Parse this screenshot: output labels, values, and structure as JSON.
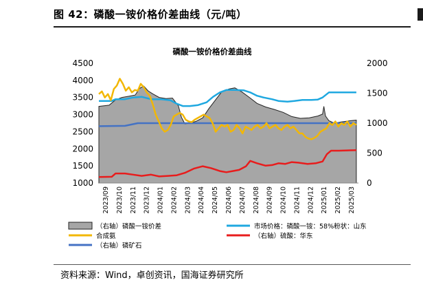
{
  "figure": {
    "title": "图 42：磷酸一铵价格价差曲线（元/吨）",
    "source": "资料来源：Wind，卓创资讯，国海证券研究所"
  },
  "chart_data": {
    "type": "line",
    "title": "磷酸一铵价格价差曲线",
    "xlabel": "",
    "ylabel": "",
    "ylim": [
      1000,
      4500
    ],
    "y2lim": [
      0,
      2000
    ],
    "yticks": [
      1000,
      1500,
      2000,
      2500,
      3000,
      3500,
      4000,
      4500
    ],
    "y2ticks": [
      0,
      500,
      1000,
      1500,
      2000
    ],
    "x_range": [
      "2023-09-01",
      "2025-04-30"
    ],
    "x_tick_labels": [
      "2023/09",
      "2023/10",
      "2023/11",
      "2023/12",
      "2024/01",
      "2024/02",
      "2024/03",
      "2024/04",
      "2024/05",
      "2024/06",
      "2024/07",
      "2024/08",
      "2024/09",
      "2024/10",
      "2024/11",
      "2024/12",
      "2025/01",
      "2025/02",
      "2025/03"
    ],
    "grid": false,
    "legend_position": "bottom",
    "colors": {
      "spread": "#a6a6a6",
      "market_price": "#1fa8e0",
      "ammonia": "#f2b705",
      "sulfuric_acid": "#e81c1c",
      "phosphate_rock": "#4472c4"
    },
    "series": [
      {
        "key": "spread",
        "name": "（右轴）磷酸一铵价差",
        "axis": "right",
        "kind": "area",
        "points": [
          [
            "2023-09-01",
            1280
          ],
          [
            "2023-09-25",
            1300
          ],
          [
            "2023-10-10",
            1390
          ],
          [
            "2023-10-25",
            1430
          ],
          [
            "2023-11-10",
            1450
          ],
          [
            "2023-11-25",
            1470
          ],
          [
            "2023-12-05",
            1580
          ],
          [
            "2023-12-15",
            1620
          ],
          [
            "2023-12-25",
            1540
          ],
          [
            "2024-01-05",
            1490
          ],
          [
            "2024-01-20",
            1430
          ],
          [
            "2024-02-05",
            1410
          ],
          [
            "2024-02-20",
            1420
          ],
          [
            "2024-03-05",
            1290
          ],
          [
            "2024-03-12",
            1100
          ],
          [
            "2024-03-20",
            990
          ],
          [
            "2024-04-01",
            1000
          ],
          [
            "2024-04-15",
            1030
          ],
          [
            "2024-05-01",
            1090
          ],
          [
            "2024-05-15",
            1240
          ],
          [
            "2024-06-01",
            1400
          ],
          [
            "2024-06-15",
            1530
          ],
          [
            "2024-07-01",
            1570
          ],
          [
            "2024-07-15",
            1590
          ],
          [
            "2024-08-01",
            1520
          ],
          [
            "2024-08-20",
            1420
          ],
          [
            "2024-09-05",
            1330
          ],
          [
            "2024-09-25",
            1270
          ],
          [
            "2024-10-15",
            1230
          ],
          [
            "2024-11-05",
            1180
          ],
          [
            "2024-11-25",
            1110
          ],
          [
            "2024-12-15",
            1080
          ],
          [
            "2025-01-05",
            1090
          ],
          [
            "2025-01-25",
            1120
          ],
          [
            "2025-02-05",
            1150
          ],
          [
            "2025-02-08",
            1280
          ],
          [
            "2025-02-12",
            1120
          ],
          [
            "2025-02-20",
            1040
          ],
          [
            "2025-03-05",
            1000
          ],
          [
            "2025-03-20",
            1020
          ],
          [
            "2025-04-10",
            1040
          ],
          [
            "2025-04-25",
            1050
          ]
        ]
      },
      {
        "key": "market_price",
        "name": "市场价格：磷酸一铵：58%粉状：山东",
        "axis": "left",
        "kind": "line",
        "points": [
          [
            "2023-09-01",
            3400
          ],
          [
            "2023-10-01",
            3400
          ],
          [
            "2023-10-10",
            3450
          ],
          [
            "2023-11-01",
            3450
          ],
          [
            "2023-11-20",
            3500
          ],
          [
            "2023-12-10",
            3520
          ],
          [
            "2024-01-01",
            3450
          ],
          [
            "2024-01-25",
            3450
          ],
          [
            "2024-02-15",
            3420
          ],
          [
            "2024-03-01",
            3320
          ],
          [
            "2024-03-15",
            3250
          ],
          [
            "2024-04-01",
            3250
          ],
          [
            "2024-04-20",
            3280
          ],
          [
            "2024-05-10",
            3360
          ],
          [
            "2024-05-25",
            3520
          ],
          [
            "2024-06-10",
            3650
          ],
          [
            "2024-06-25",
            3720
          ],
          [
            "2024-07-15",
            3720
          ],
          [
            "2024-08-05",
            3710
          ],
          [
            "2024-08-20",
            3650
          ],
          [
            "2024-09-05",
            3550
          ],
          [
            "2024-09-20",
            3500
          ],
          [
            "2024-10-10",
            3450
          ],
          [
            "2024-10-25",
            3400
          ],
          [
            "2024-11-15",
            3380
          ],
          [
            "2024-12-01",
            3400
          ],
          [
            "2024-12-20",
            3430
          ],
          [
            "2025-01-10",
            3430
          ],
          [
            "2025-01-25",
            3440
          ],
          [
            "2025-02-05",
            3500
          ],
          [
            "2025-02-20",
            3650
          ],
          [
            "2025-03-10",
            3650
          ],
          [
            "2025-04-25",
            3650
          ]
        ]
      },
      {
        "key": "ammonia",
        "name": "合成氨",
        "axis": "left",
        "kind": "line",
        "points": [
          [
            "2023-09-01",
            3600
          ],
          [
            "2023-09-08",
            3680
          ],
          [
            "2023-09-15",
            3500
          ],
          [
            "2023-09-22",
            3600
          ],
          [
            "2023-09-29",
            3420
          ],
          [
            "2023-10-06",
            3750
          ],
          [
            "2023-10-13",
            3850
          ],
          [
            "2023-10-20",
            4050
          ],
          [
            "2023-10-27",
            3900
          ],
          [
            "2023-11-03",
            3700
          ],
          [
            "2023-11-10",
            3800
          ],
          [
            "2023-11-17",
            3650
          ],
          [
            "2023-11-24",
            3720
          ],
          [
            "2023-12-01",
            3700
          ],
          [
            "2023-12-08",
            3900
          ],
          [
            "2023-12-15",
            3800
          ],
          [
            "2023-12-22",
            3650
          ],
          [
            "2023-12-29",
            3550
          ],
          [
            "2024-01-05",
            3300
          ],
          [
            "2024-01-12",
            3000
          ],
          [
            "2024-01-19",
            2800
          ],
          [
            "2024-01-26",
            2600
          ],
          [
            "2024-02-02",
            2500
          ],
          [
            "2024-02-09",
            2550
          ],
          [
            "2024-02-16",
            2700
          ],
          [
            "2024-02-23",
            2950
          ],
          [
            "2024-03-01",
            3000
          ],
          [
            "2024-03-08",
            3050
          ],
          [
            "2024-03-15",
            3000
          ],
          [
            "2024-03-22",
            2850
          ],
          [
            "2024-03-29",
            2800
          ],
          [
            "2024-04-05",
            2780
          ],
          [
            "2024-04-12",
            2850
          ],
          [
            "2024-04-19",
            2900
          ],
          [
            "2024-04-26",
            2950
          ],
          [
            "2024-05-03",
            3000
          ],
          [
            "2024-05-10",
            2950
          ],
          [
            "2024-05-17",
            2900
          ],
          [
            "2024-05-24",
            2750
          ],
          [
            "2024-05-31",
            2500
          ],
          [
            "2024-06-07",
            2600
          ],
          [
            "2024-06-14",
            2700
          ],
          [
            "2024-06-21",
            2650
          ],
          [
            "2024-06-28",
            2700
          ],
          [
            "2024-07-05",
            2500
          ],
          [
            "2024-07-12",
            2550
          ],
          [
            "2024-07-19",
            2700
          ],
          [
            "2024-07-26",
            2600
          ],
          [
            "2024-08-02",
            2450
          ],
          [
            "2024-08-09",
            2650
          ],
          [
            "2024-08-16",
            2600
          ],
          [
            "2024-08-23",
            2550
          ],
          [
            "2024-08-30",
            2650
          ],
          [
            "2024-09-06",
            2700
          ],
          [
            "2024-09-13",
            2600
          ],
          [
            "2024-09-20",
            2650
          ],
          [
            "2024-09-27",
            2750
          ],
          [
            "2024-10-04",
            2600
          ],
          [
            "2024-10-11",
            2650
          ],
          [
            "2024-10-18",
            2700
          ],
          [
            "2024-10-25",
            2600
          ],
          [
            "2024-11-01",
            2550
          ],
          [
            "2024-11-08",
            2650
          ],
          [
            "2024-11-15",
            2700
          ],
          [
            "2024-11-22",
            2600
          ],
          [
            "2024-11-29",
            2650
          ],
          [
            "2024-12-06",
            2550
          ],
          [
            "2024-12-13",
            2450
          ],
          [
            "2024-12-20",
            2450
          ],
          [
            "2024-12-27",
            2350
          ],
          [
            "2025-01-03",
            2300
          ],
          [
            "2025-01-10",
            2280
          ],
          [
            "2025-01-17",
            2320
          ],
          [
            "2025-01-24",
            2380
          ],
          [
            "2025-01-31",
            2500
          ],
          [
            "2025-02-07",
            2550
          ],
          [
            "2025-02-14",
            2600
          ],
          [
            "2025-02-21",
            2750
          ],
          [
            "2025-02-28",
            2700
          ],
          [
            "2025-03-07",
            2800
          ],
          [
            "2025-03-14",
            2650
          ],
          [
            "2025-03-21",
            2750
          ],
          [
            "2025-03-28",
            2700
          ],
          [
            "2025-04-04",
            2800
          ],
          [
            "2025-04-11",
            2650
          ],
          [
            "2025-04-18",
            2750
          ],
          [
            "2025-04-25",
            2700
          ]
        ]
      },
      {
        "key": "sulfuric_acid",
        "name": "（右轴）硫酸：华东",
        "axis": "right",
        "kind": "line",
        "points": [
          [
            "2023-09-01",
            100
          ],
          [
            "2023-10-01",
            105
          ],
          [
            "2023-10-10",
            160
          ],
          [
            "2023-11-01",
            160
          ],
          [
            "2023-11-20",
            140
          ],
          [
            "2023-12-10",
            120
          ],
          [
            "2024-01-01",
            140
          ],
          [
            "2024-01-20",
            110
          ],
          [
            "2024-02-10",
            120
          ],
          [
            "2024-03-01",
            130
          ],
          [
            "2024-03-20",
            170
          ],
          [
            "2024-04-10",
            240
          ],
          [
            "2024-05-01",
            280
          ],
          [
            "2024-05-20",
            250
          ],
          [
            "2024-06-10",
            200
          ],
          [
            "2024-06-25",
            180
          ],
          [
            "2024-07-10",
            200
          ],
          [
            "2024-07-25",
            220
          ],
          [
            "2024-08-10",
            280
          ],
          [
            "2024-08-20",
            370
          ],
          [
            "2024-09-05",
            330
          ],
          [
            "2024-09-25",
            290
          ],
          [
            "2024-10-10",
            300
          ],
          [
            "2024-10-25",
            330
          ],
          [
            "2024-11-10",
            320
          ],
          [
            "2024-11-25",
            350
          ],
          [
            "2024-12-10",
            340
          ],
          [
            "2025-01-01",
            320
          ],
          [
            "2025-01-20",
            330
          ],
          [
            "2025-02-05",
            360
          ],
          [
            "2025-02-15",
            480
          ],
          [
            "2025-02-25",
            540
          ],
          [
            "2025-03-15",
            540
          ],
          [
            "2025-04-25",
            550
          ]
        ]
      },
      {
        "key": "phosphate_rock",
        "name": "（右轴）磷矿石",
        "axis": "right",
        "kind": "line",
        "points": [
          [
            "2023-09-01",
            950
          ],
          [
            "2023-11-01",
            955
          ],
          [
            "2023-12-01",
            1000
          ],
          [
            "2025-04-25",
            1000
          ]
        ]
      }
    ]
  }
}
